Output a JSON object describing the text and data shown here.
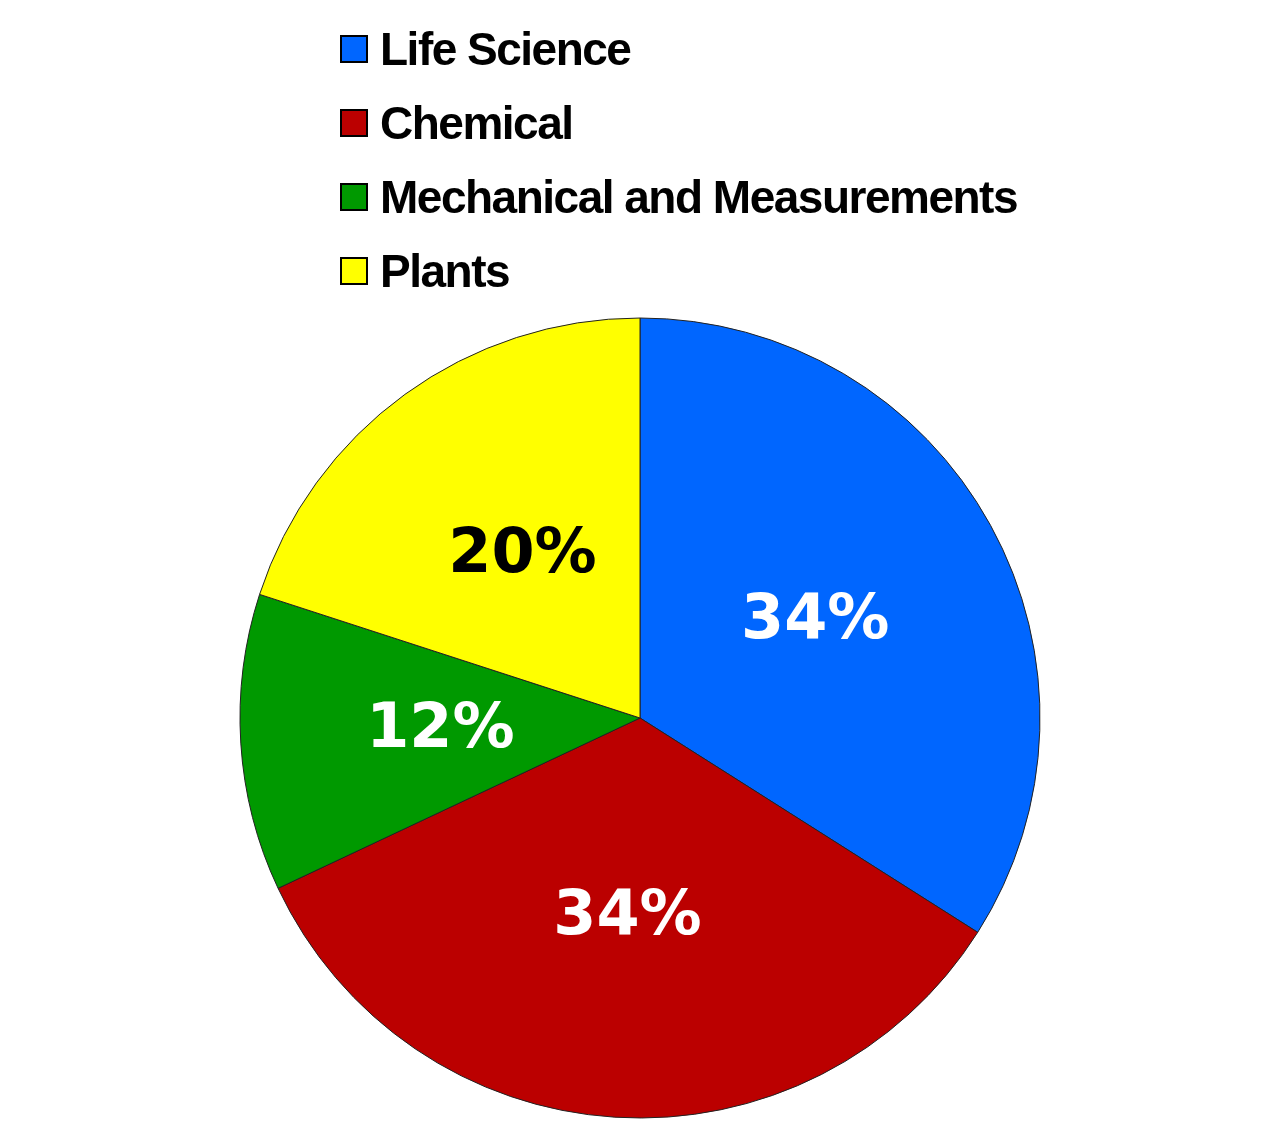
{
  "chart_data": {
    "type": "pie",
    "categories": [
      "Life Science",
      "Chemical",
      "Mechanical and Measurements",
      "Plants"
    ],
    "values": [
      34,
      34,
      12,
      20
    ],
    "colors": [
      "#0066ff",
      "#bb0000",
      "#009900",
      "#ffff00"
    ],
    "value_labels": [
      "34%",
      "34%",
      "12%",
      "20%"
    ],
    "legend": "top"
  }
}
